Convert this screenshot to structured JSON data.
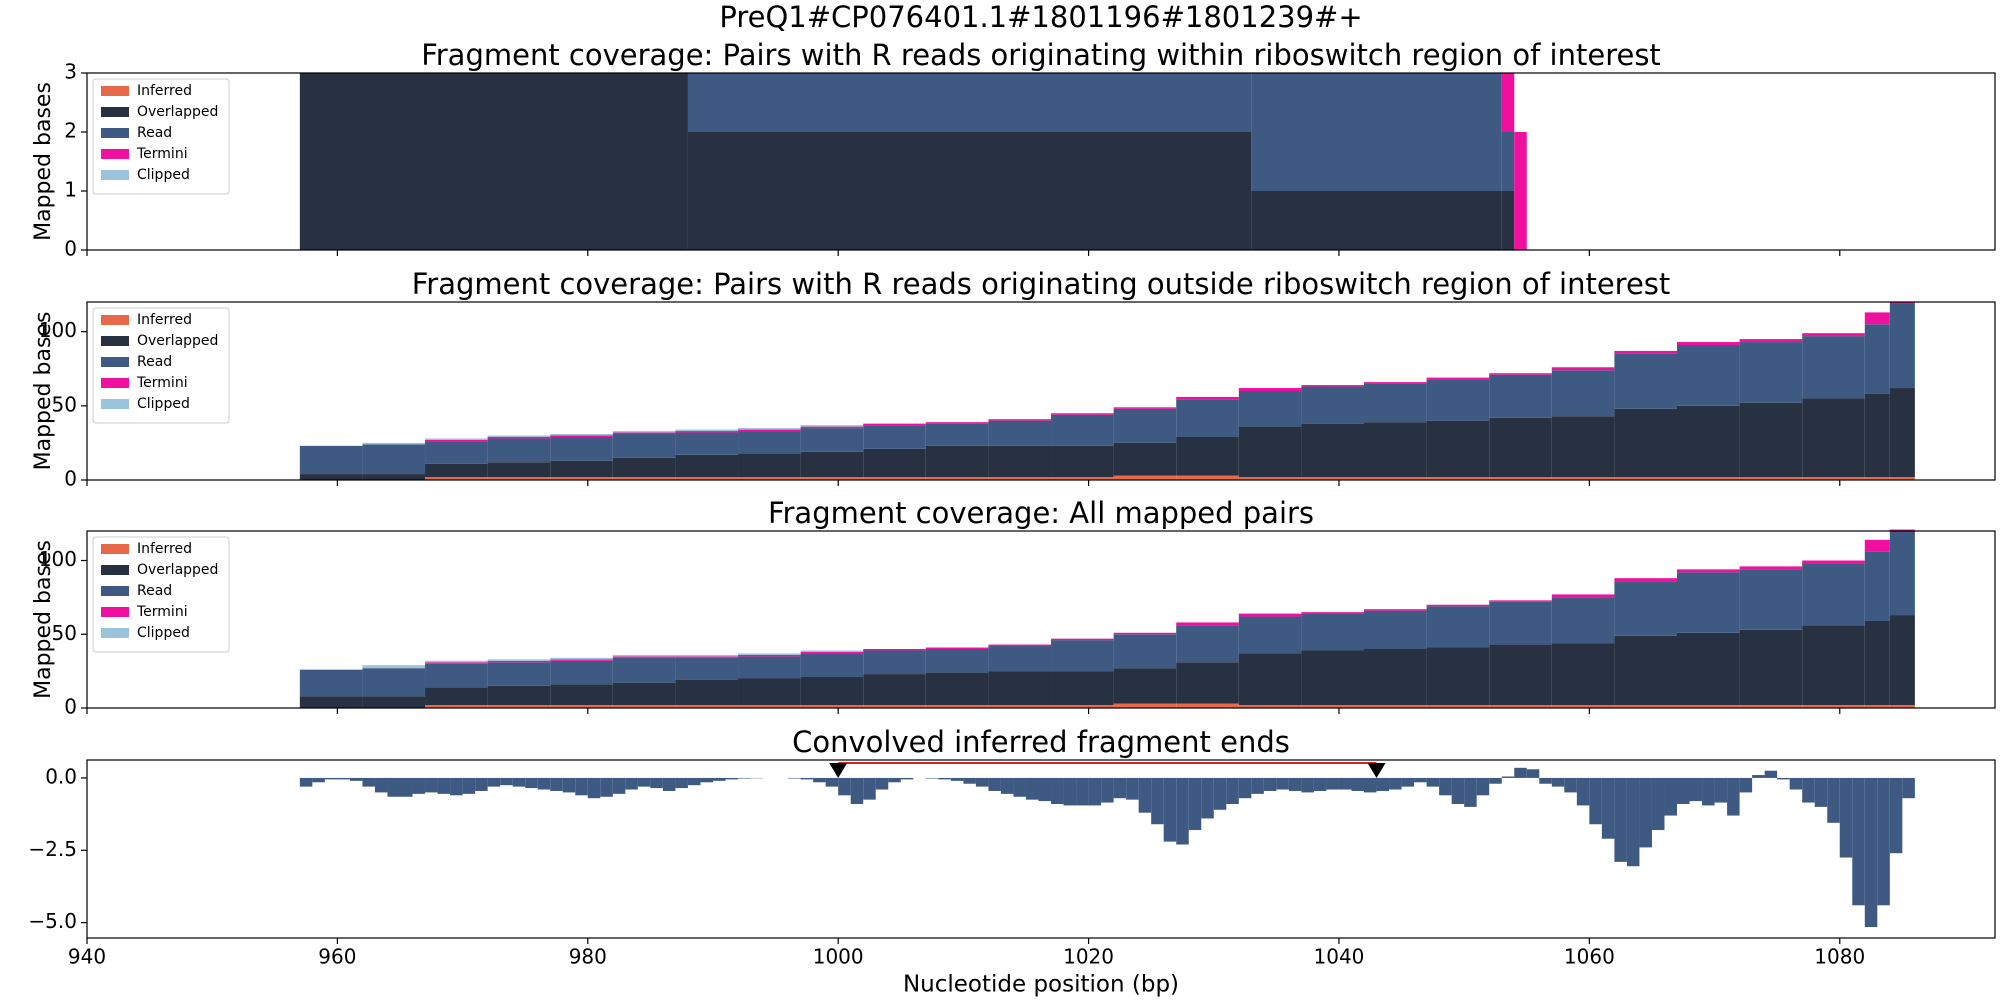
{
  "title": "PreQ1#CP076401.1#1801196#1801239#+",
  "chart_data": [
    {
      "type": "histogram",
      "title": "Fragment coverage: Pairs with R reads originating within riboswitch region of interest",
      "ylabel": "Mapped bases",
      "ylim": [
        0,
        3
      ],
      "yticks": [
        0,
        1,
        2,
        3
      ],
      "legend": "upper left",
      "bins": [
        957,
        988,
        1033,
        1053,
        1054,
        1055
      ],
      "series": [
        {
          "name": "Inferred",
          "color": "#e8694a",
          "values": [
            0,
            0,
            0,
            0,
            0
          ]
        },
        {
          "name": "Overlapped",
          "color": "#283142",
          "values": [
            3,
            2,
            1,
            1,
            0
          ]
        },
        {
          "name": "Read",
          "color": "#3e5a82",
          "values": [
            0,
            1,
            2,
            1,
            0
          ]
        },
        {
          "name": "Termini",
          "color": "#f0109f",
          "values": [
            0,
            0,
            0,
            1,
            2
          ]
        },
        {
          "name": "Clipped",
          "color": "#9cc3dc",
          "values": [
            0,
            0,
            0,
            0,
            0
          ]
        }
      ]
    },
    {
      "type": "histogram",
      "title": "Fragment coverage: Pairs with R reads originating outside riboswitch region of interest",
      "ylabel": "Mapped bases",
      "ylim": [
        0,
        120
      ],
      "yticks": [
        0,
        50,
        100
      ],
      "legend": "upper left",
      "bins": [
        957,
        962,
        967,
        972,
        977,
        982,
        987,
        992,
        997,
        1002,
        1007,
        1012,
        1017,
        1022,
        1027,
        1032,
        1037,
        1042,
        1047,
        1052,
        1057,
        1062,
        1067,
        1072,
        1077,
        1082,
        1084,
        1086
      ],
      "series": [
        {
          "name": "Inferred",
          "color": "#e8694a",
          "values": [
            0,
            0,
            2,
            2,
            2,
            2,
            2,
            2,
            2,
            2,
            2,
            2,
            2,
            3,
            3,
            2,
            2,
            2,
            2,
            2,
            2,
            2,
            2,
            2,
            2,
            2,
            2
          ]
        },
        {
          "name": "Overlapped",
          "color": "#283142",
          "values": [
            4,
            4,
            9,
            10,
            11,
            13,
            15,
            16,
            17,
            19,
            21,
            21,
            21,
            22,
            26,
            34,
            36,
            37,
            38,
            40,
            41,
            46,
            48,
            50,
            53,
            56,
            60
          ]
        },
        {
          "name": "Read",
          "color": "#3e5a82",
          "values": [
            19,
            20,
            15,
            16,
            16,
            16,
            15,
            15,
            16,
            16,
            15,
            17,
            21,
            23,
            25,
            24,
            25,
            26,
            28,
            29,
            31,
            37,
            41,
            41,
            42,
            47,
            57
          ]
        },
        {
          "name": "Termini",
          "color": "#f0109f",
          "values": [
            0,
            0,
            1,
            1,
            1,
            1,
            1,
            1,
            1,
            1,
            1,
            1,
            1,
            1,
            2,
            2,
            1,
            1,
            1,
            1,
            2,
            2,
            2,
            2,
            2,
            8,
            1
          ]
        },
        {
          "name": "Clipped",
          "color": "#9cc3dc",
          "values": [
            0,
            1,
            1,
            1,
            1,
            1,
            1,
            1,
            1,
            0,
            0,
            0,
            0,
            0,
            0,
            0,
            0,
            0,
            0,
            0,
            0,
            0,
            0,
            0,
            0,
            0,
            0
          ]
        }
      ]
    },
    {
      "type": "histogram",
      "title": "Fragment coverage: All mapped pairs",
      "ylabel": "Mapped bases",
      "ylim": [
        0,
        120
      ],
      "yticks": [
        0,
        50,
        100
      ],
      "legend": "upper left",
      "bins": [
        957,
        962,
        967,
        972,
        977,
        982,
        987,
        992,
        997,
        1002,
        1007,
        1012,
        1017,
        1022,
        1027,
        1032,
        1037,
        1042,
        1047,
        1052,
        1057,
        1062,
        1067,
        1072,
        1077,
        1082,
        1084,
        1086
      ],
      "series": [
        {
          "name": "Inferred",
          "color": "#e8694a",
          "values": [
            0,
            0,
            2,
            2,
            2,
            2,
            2,
            2,
            2,
            2,
            2,
            2,
            2,
            3,
            3,
            2,
            2,
            2,
            2,
            2,
            2,
            2,
            2,
            2,
            2,
            2,
            2
          ]
        },
        {
          "name": "Overlapped",
          "color": "#283142",
          "values": [
            8,
            8,
            12,
            13,
            14,
            15,
            17,
            18,
            19,
            21,
            22,
            23,
            23,
            24,
            28,
            35,
            37,
            38,
            39,
            41,
            42,
            47,
            49,
            51,
            54,
            57,
            61
          ]
        },
        {
          "name": "Read",
          "color": "#3e5a82",
          "values": [
            18,
            19,
            16,
            16,
            16,
            17,
            15,
            15,
            16,
            16,
            16,
            17,
            21,
            23,
            25,
            25,
            25,
            26,
            28,
            29,
            31,
            37,
            41,
            41,
            42,
            47,
            57
          ]
        },
        {
          "name": "Termini",
          "color": "#f0109f",
          "values": [
            0,
            0,
            1,
            1,
            1,
            1,
            1,
            1,
            1,
            1,
            1,
            1,
            1,
            1,
            2,
            2,
            1,
            1,
            1,
            1,
            2,
            2,
            2,
            2,
            2,
            8,
            1
          ]
        },
        {
          "name": "Clipped",
          "color": "#9cc3dc",
          "values": [
            0,
            2,
            1,
            1,
            1,
            1,
            1,
            1,
            1,
            0,
            0,
            0,
            0,
            0,
            0,
            0,
            0,
            0,
            0,
            0,
            0,
            0,
            0,
            0,
            0,
            0,
            0
          ]
        }
      ]
    },
    {
      "type": "bar",
      "title": "Convolved inferred fragment ends",
      "xlabel": "Nucleotide position (bp)",
      "xlim": [
        940,
        1092.4
      ],
      "xticks": [
        940,
        960,
        980,
        1000,
        1020,
        1040,
        1060,
        1080
      ],
      "ylim": [
        -5.53,
        0.62
      ],
      "yticks": [
        {
          "value": 0,
          "label": "0.0"
        },
        {
          "value": -2.5,
          "label": "−2.5"
        },
        {
          "value": -5,
          "label": "−5.0"
        }
      ],
      "color": "#3e5a82",
      "markers": [
        1000,
        1043
      ],
      "marker_color": "#000000",
      "line_color": "#d62728",
      "x": [
        957,
        958,
        959,
        960,
        961,
        962,
        963,
        964,
        965,
        966,
        967,
        968,
        969,
        970,
        971,
        972,
        973,
        974,
        975,
        976,
        977,
        978,
        979,
        980,
        981,
        982,
        983,
        984,
        985,
        986,
        987,
        988,
        989,
        990,
        991,
        992,
        993,
        994,
        995,
        996,
        997,
        998,
        999,
        1000,
        1001,
        1002,
        1003,
        1004,
        1005,
        1006,
        1007,
        1008,
        1009,
        1010,
        1011,
        1012,
        1013,
        1014,
        1015,
        1016,
        1017,
        1018,
        1019,
        1020,
        1021,
        1022,
        1023,
        1024,
        1025,
        1026,
        1027,
        1028,
        1029,
        1030,
        1031,
        1032,
        1033,
        1034,
        1035,
        1036,
        1037,
        1038,
        1039,
        1040,
        1041,
        1042,
        1043,
        1044,
        1045,
        1046,
        1047,
        1048,
        1049,
        1050,
        1051,
        1052,
        1053,
        1054,
        1055,
        1056,
        1057,
        1058,
        1059,
        1060,
        1061,
        1062,
        1063,
        1064,
        1065,
        1066,
        1067,
        1068,
        1069,
        1070,
        1071,
        1072,
        1073,
        1074,
        1075,
        1076,
        1077,
        1078,
        1079,
        1080,
        1081,
        1082,
        1083,
        1084,
        1085
      ],
      "values": [
        -0.3,
        -0.15,
        -0.05,
        -0.05,
        -0.1,
        -0.3,
        -0.5,
        -0.65,
        -0.65,
        -0.55,
        -0.5,
        -0.55,
        -0.6,
        -0.55,
        -0.45,
        -0.3,
        -0.25,
        -0.3,
        -0.35,
        -0.4,
        -0.45,
        -0.5,
        -0.6,
        -0.7,
        -0.65,
        -0.55,
        -0.4,
        -0.3,
        -0.35,
        -0.45,
        -0.35,
        -0.25,
        -0.15,
        -0.1,
        -0.05,
        -0.02,
        -0.01,
        0,
        0,
        -0.02,
        -0.05,
        -0.15,
        -0.3,
        -0.6,
        -0.9,
        -0.75,
        -0.4,
        -0.15,
        -0.05,
        0,
        -0.02,
        -0.05,
        -0.1,
        -0.2,
        -0.3,
        -0.45,
        -0.55,
        -0.65,
        -0.75,
        -0.8,
        -0.9,
        -0.95,
        -0.95,
        -0.95,
        -0.85,
        -0.7,
        -0.75,
        -1.2,
        -1.6,
        -2.2,
        -2.3,
        -1.8,
        -1.4,
        -1.1,
        -0.9,
        -0.7,
        -0.55,
        -0.45,
        -0.4,
        -0.45,
        -0.5,
        -0.45,
        -0.4,
        -0.4,
        -0.45,
        -0.5,
        -0.45,
        -0.4,
        -0.3,
        -0.15,
        -0.3,
        -0.6,
        -0.9,
        -1.0,
        -0.6,
        -0.2,
        0.05,
        0.35,
        0.3,
        -0.2,
        -0.3,
        -0.5,
        -0.95,
        -1.6,
        -2.1,
        -2.9,
        -3.05,
        -2.4,
        -1.8,
        -1.3,
        -0.9,
        -0.8,
        -0.95,
        -0.85,
        -1.3,
        -0.5,
        0.1,
        0.25,
        -0.05,
        -0.4,
        -0.85,
        -1.0,
        -1.55,
        -2.75,
        -4.4,
        -5.15,
        -4.4,
        -2.6,
        -0.7
      ]
    }
  ]
}
